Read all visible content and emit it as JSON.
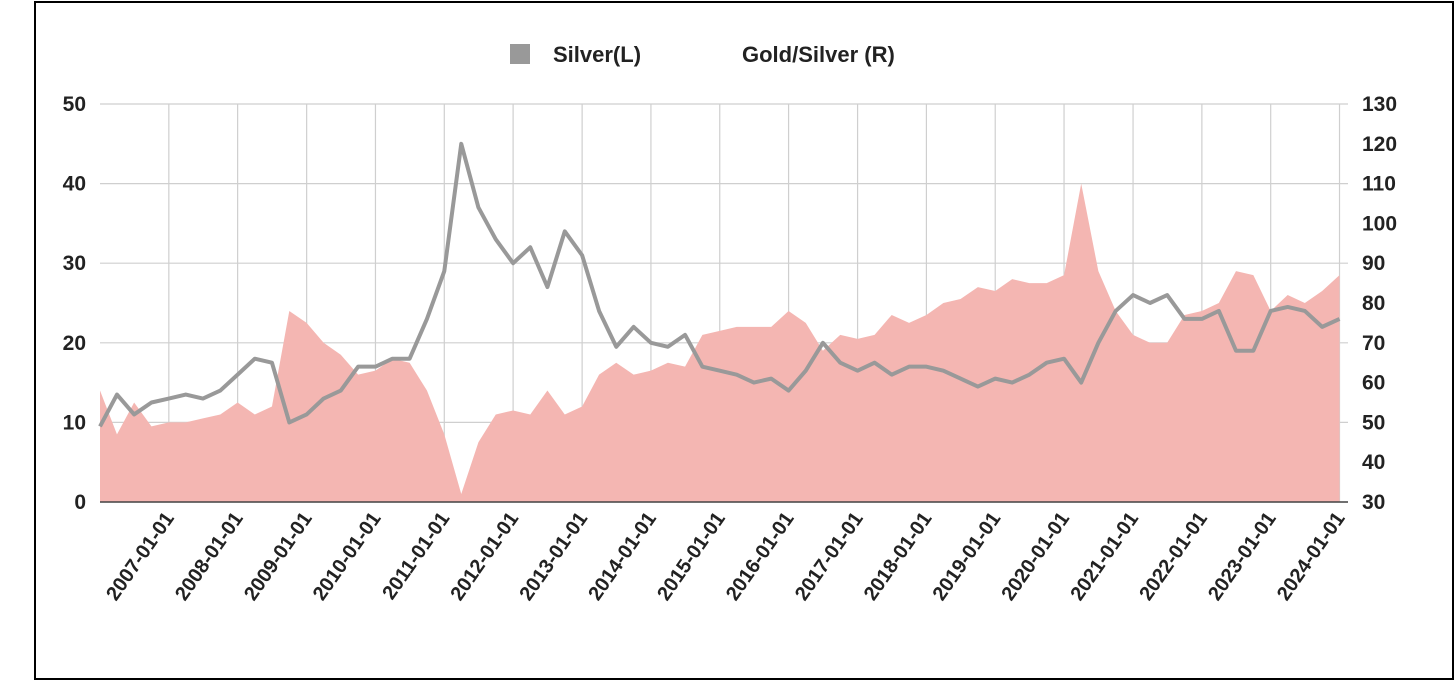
{
  "chart_data": {
    "type": "line",
    "x": [
      "2006-01-01",
      "2006-04-01",
      "2006-07-01",
      "2006-10-01",
      "2007-01-01",
      "2007-04-01",
      "2007-07-01",
      "2007-10-01",
      "2008-01-01",
      "2008-04-01",
      "2008-07-01",
      "2008-10-01",
      "2009-01-01",
      "2009-04-01",
      "2009-07-01",
      "2009-10-01",
      "2010-01-01",
      "2010-04-01",
      "2010-07-01",
      "2010-10-01",
      "2011-01-01",
      "2011-04-01",
      "2011-07-01",
      "2011-10-01",
      "2012-01-01",
      "2012-04-01",
      "2012-07-01",
      "2012-10-01",
      "2013-01-01",
      "2013-04-01",
      "2013-07-01",
      "2013-10-01",
      "2014-01-01",
      "2014-04-01",
      "2014-07-01",
      "2014-10-01",
      "2015-01-01",
      "2015-04-01",
      "2015-07-01",
      "2015-10-01",
      "2016-01-01",
      "2016-04-01",
      "2016-07-01",
      "2016-10-01",
      "2017-01-01",
      "2017-04-01",
      "2017-07-01",
      "2017-10-01",
      "2018-01-01",
      "2018-04-01",
      "2018-07-01",
      "2018-10-01",
      "2019-01-01",
      "2019-04-01",
      "2019-07-01",
      "2019-10-01",
      "2020-01-01",
      "2020-04-01",
      "2020-07-01",
      "2020-10-01",
      "2021-01-01",
      "2021-04-01",
      "2021-07-01",
      "2021-10-01",
      "2022-01-01",
      "2022-04-01",
      "2022-07-01",
      "2022-10-01",
      "2023-01-01",
      "2023-04-01",
      "2023-07-01",
      "2023-10-01",
      "2024-01-01"
    ],
    "series": [
      {
        "name": "Gold/Silver (R)",
        "color": "#f4b6b2",
        "axis": "y2",
        "values": [
          58,
          47,
          55,
          49,
          50,
          50,
          51,
          52,
          55,
          52,
          54,
          78,
          75,
          70,
          67,
          62,
          63,
          66,
          65,
          58,
          47,
          32,
          45,
          52,
          53,
          52,
          58,
          52,
          54,
          62,
          65,
          62,
          63,
          65,
          64,
          72,
          73,
          74,
          74,
          74,
          78,
          75,
          68,
          72,
          71,
          72,
          77,
          75,
          77,
          80,
          81,
          84,
          83,
          86,
          85,
          85,
          87,
          110,
          88,
          78,
          72,
          70,
          70,
          77,
          78,
          80,
          88,
          87,
          78,
          82,
          80,
          83,
          87
        ]
      },
      {
        "name": "Silver(L)",
        "color": "#999999",
        "values": [
          9.5,
          13.5,
          11,
          12.5,
          13,
          13.5,
          13,
          14,
          16,
          18,
          17.5,
          10,
          11,
          13,
          14,
          17,
          17,
          18,
          18,
          23,
          29,
          45,
          37,
          33,
          30,
          32,
          27,
          34,
          31,
          24,
          19.5,
          22,
          20,
          19.5,
          21,
          17,
          16.5,
          16,
          15,
          15.5,
          14,
          16.5,
          20,
          17.5,
          16.5,
          17.5,
          16,
          17,
          17,
          16.5,
          15.5,
          14.5,
          15.5,
          15,
          16,
          17.5,
          18,
          15,
          20,
          24,
          26,
          25,
          26,
          23,
          23,
          24,
          19,
          19,
          24,
          24.5,
          24,
          22,
          23
        ]
      }
    ],
    "xlim": [
      "2006-01-01",
      "2024-02-15"
    ],
    "xticks": [
      "2007-01-01",
      "2008-01-01",
      "2009-01-01",
      "2010-01-01",
      "2011-01-01",
      "2012-01-01",
      "2013-01-01",
      "2014-01-01",
      "2015-01-01",
      "2016-01-01",
      "2017-01-01",
      "2018-01-01",
      "2019-01-01",
      "2020-01-01",
      "2021-01-01",
      "2022-01-01",
      "2023-01-01",
      "2024-01-01"
    ],
    "ylim": [
      0,
      50
    ],
    "yticks": [
      0,
      10,
      20,
      30,
      40,
      50
    ],
    "y2lim": [
      30,
      130
    ],
    "y2ticks": [
      30,
      40,
      50,
      60,
      70,
      80,
      90,
      100,
      110,
      120,
      130
    ],
    "grid": true,
    "legend": "top"
  }
}
